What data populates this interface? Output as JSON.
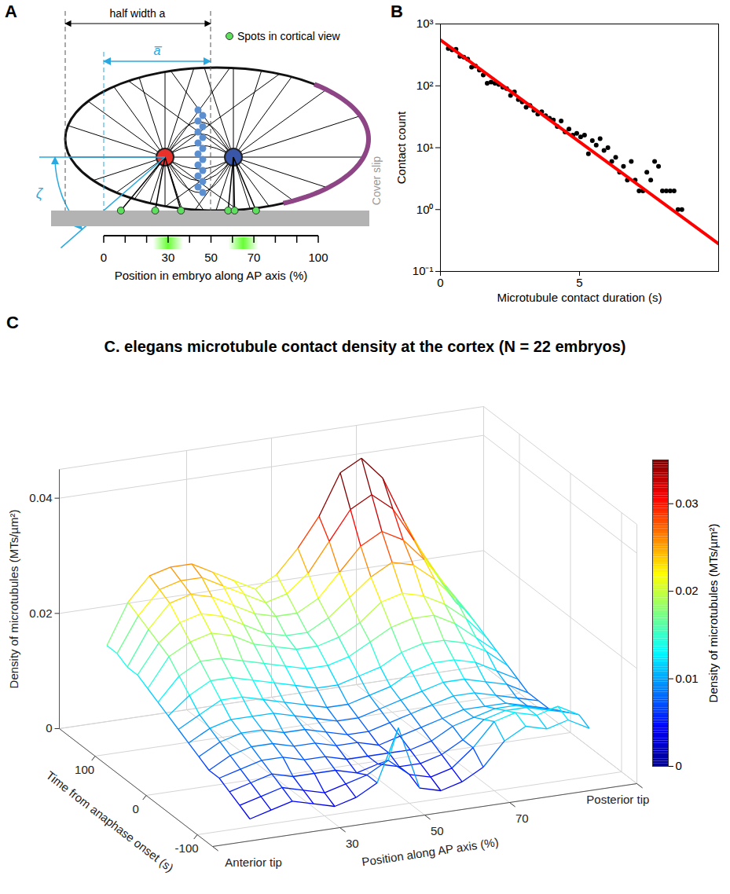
{
  "panel_a": {
    "panel": "A",
    "half_width_label": "half width a",
    "mean_half_width_label": "a̅",
    "angle_label": "ζ",
    "spot_legend": {
      "label": "Spots in cortical view",
      "color": "#5ee05e"
    },
    "cover_slip_label": "Cover slip",
    "axis": {
      "label": "Position in embryo along AP axis (%)",
      "xlim": [
        0,
        100
      ],
      "xticks": [
        0,
        30,
        50,
        70,
        100
      ],
      "tick_marks": [
        0,
        10,
        20,
        30,
        40,
        50,
        60,
        70,
        80,
        90,
        100
      ]
    },
    "spots": [
      8,
      24,
      36,
      58,
      61,
      71
    ],
    "bands": [
      [
        23,
        37
      ],
      [
        58,
        72
      ]
    ]
  },
  "chart_data": [
    {
      "panel": "B",
      "type": "scatter",
      "xlabel": "Microtubule contact duration (s)",
      "ylabel": "Contact count",
      "log": "y",
      "grid": false,
      "xlim": [
        0,
        10
      ],
      "xticks": [
        0,
        5
      ],
      "ylim": [
        0.1,
        1000
      ],
      "yticks": [
        {
          "value": 0.1,
          "label": "10⁻¹"
        },
        {
          "value": 1,
          "label": "10⁰"
        },
        {
          "value": 10,
          "label": "10¹"
        },
        {
          "value": 100,
          "label": "10²"
        },
        {
          "value": 1000,
          "label": "10³"
        }
      ],
      "series": [
        {
          "type": "scatter",
          "color": "#000000",
          "marker": "circle",
          "x": [
            0.28,
            0.42,
            0.56,
            0.7,
            0.84,
            0.98,
            1.12,
            1.26,
            1.4,
            1.54,
            1.68,
            1.82,
            1.96,
            2.1,
            2.24,
            2.38,
            2.52,
            2.66,
            2.8,
            2.94,
            3.08,
            3.22,
            3.36,
            3.5,
            3.64,
            3.78,
            3.92,
            4.06,
            4.2,
            4.34,
            4.48,
            4.62,
            4.76,
            4.9,
            5.04,
            5.18,
            5.32,
            5.46,
            5.6,
            5.74,
            5.88,
            6.02,
            6.16,
            6.3,
            6.44,
            6.58,
            6.72,
            6.86,
            7.0,
            7.14,
            7.28,
            7.42,
            7.56,
            7.7,
            7.84,
            7.98,
            8.12,
            8.26,
            8.4,
            8.54,
            8.68
          ],
          "values": [
            400,
            380,
            390,
            300,
            290,
            270,
            200,
            210,
            180,
            150,
            110,
            115,
            110,
            105,
            95,
            90,
            70,
            80,
            60,
            55,
            45,
            48,
            40,
            35,
            38,
            33,
            30,
            28,
            22,
            27,
            18,
            20,
            16,
            17,
            15,
            16,
            8,
            13,
            11,
            14,
            9,
            10,
            6,
            7,
            4,
            5,
            3,
            6,
            3,
            2,
            2,
            4,
            3,
            6,
            5,
            2,
            2,
            2,
            2,
            1,
            1
          ]
        },
        {
          "type": "line",
          "color": "#ff0000",
          "line_style": "solid",
          "x": [
            0,
            10
          ],
          "values": [
            550,
            0.28
          ]
        }
      ]
    },
    {
      "panel": "C",
      "type": "surface",
      "title": "C. elegans microtubule contact density at the cortex (N = 22 embryos)",
      "xlabel": "Position along AP axis (%)",
      "ylabel": "Time from anaphase onset (s)",
      "zlabel": "Density of microtubules (MTs/µm²)",
      "grid": true,
      "xlim": [
        0,
        100
      ],
      "xticks": [
        {
          "value": 0,
          "label": "Anterior tip"
        },
        30,
        50,
        70,
        {
          "value": 100,
          "label": "Posterior tip"
        }
      ],
      "ylim": [
        -130,
        170
      ],
      "yticks": [
        -100,
        0,
        100
      ],
      "zlim": [
        0,
        0.045
      ],
      "zticks": [
        0,
        0.02,
        0.04
      ],
      "x": [
        10,
        15,
        20,
        25,
        30,
        35,
        40,
        45,
        50,
        55,
        60,
        65,
        70,
        75,
        80,
        85,
        90
      ],
      "y": [
        -120,
        -100,
        -80,
        -60,
        -40,
        -20,
        0,
        20,
        40,
        60,
        80,
        100,
        120,
        140,
        160
      ],
      "z": [
        [
          0.003,
          0.004,
          0.005,
          0.004,
          0.003,
          0.004,
          0.006,
          0.015,
          0.004,
          0.003,
          0.004,
          0.006,
          0.01,
          0.012,
          0.011,
          0.012,
          0.01
        ],
        [
          0.004,
          0.005,
          0.006,
          0.005,
          0.004,
          0.005,
          0.006,
          0.008,
          0.005,
          0.004,
          0.005,
          0.008,
          0.012,
          0.013,
          0.012,
          0.013,
          0.011
        ],
        [
          0.005,
          0.006,
          0.007,
          0.006,
          0.006,
          0.006,
          0.005,
          0.006,
          0.005,
          0.005,
          0.006,
          0.008,
          0.011,
          0.012,
          0.012,
          0.011,
          0.01
        ],
        [
          0.006,
          0.007,
          0.008,
          0.008,
          0.007,
          0.007,
          0.006,
          0.006,
          0.006,
          0.006,
          0.007,
          0.009,
          0.01,
          0.011,
          0.011,
          0.01,
          0.009
        ],
        [
          0.006,
          0.008,
          0.009,
          0.009,
          0.008,
          0.008,
          0.007,
          0.007,
          0.006,
          0.007,
          0.008,
          0.009,
          0.01,
          0.01,
          0.01,
          0.009,
          0.008
        ],
        [
          0.007,
          0.009,
          0.01,
          0.01,
          0.009,
          0.009,
          0.008,
          0.007,
          0.007,
          0.008,
          0.009,
          0.01,
          0.011,
          0.011,
          0.01,
          0.009,
          0.008
        ],
        [
          0.008,
          0.01,
          0.011,
          0.011,
          0.011,
          0.01,
          0.009,
          0.008,
          0.008,
          0.009,
          0.01,
          0.011,
          0.012,
          0.012,
          0.011,
          0.01,
          0.008
        ],
        [
          0.009,
          0.011,
          0.013,
          0.013,
          0.012,
          0.011,
          0.01,
          0.009,
          0.009,
          0.01,
          0.011,
          0.013,
          0.014,
          0.014,
          0.013,
          0.011,
          0.009
        ],
        [
          0.01,
          0.013,
          0.015,
          0.015,
          0.014,
          0.013,
          0.012,
          0.011,
          0.011,
          0.012,
          0.013,
          0.015,
          0.016,
          0.016,
          0.015,
          0.013,
          0.01
        ],
        [
          0.011,
          0.015,
          0.017,
          0.017,
          0.016,
          0.015,
          0.014,
          0.013,
          0.013,
          0.014,
          0.016,
          0.018,
          0.019,
          0.019,
          0.017,
          0.014,
          0.011
        ],
        [
          0.012,
          0.017,
          0.019,
          0.02,
          0.019,
          0.017,
          0.016,
          0.015,
          0.015,
          0.016,
          0.018,
          0.021,
          0.022,
          0.021,
          0.019,
          0.016,
          0.012
        ],
        [
          0.013,
          0.018,
          0.021,
          0.022,
          0.021,
          0.019,
          0.017,
          0.016,
          0.016,
          0.018,
          0.021,
          0.024,
          0.026,
          0.025,
          0.022,
          0.018,
          0.013
        ],
        [
          0.013,
          0.019,
          0.023,
          0.024,
          0.023,
          0.021,
          0.019,
          0.018,
          0.018,
          0.02,
          0.024,
          0.028,
          0.03,
          0.028,
          0.024,
          0.019,
          0.014
        ],
        [
          0.014,
          0.02,
          0.024,
          0.025,
          0.025,
          0.023,
          0.021,
          0.019,
          0.02,
          0.023,
          0.028,
          0.033,
          0.035,
          0.032,
          0.026,
          0.02,
          0.014
        ],
        [
          0.014,
          0.021,
          0.025,
          0.026,
          0.026,
          0.024,
          0.022,
          0.02,
          0.022,
          0.026,
          0.031,
          0.038,
          0.04,
          0.036,
          0.028,
          0.021,
          0.015
        ]
      ],
      "colorbar": {
        "label": "Density of microtubules (MTs/µm²)",
        "range": [
          0,
          0.035
        ],
        "ticks": [
          0,
          0.01,
          0.02,
          0.03
        ]
      }
    }
  ]
}
